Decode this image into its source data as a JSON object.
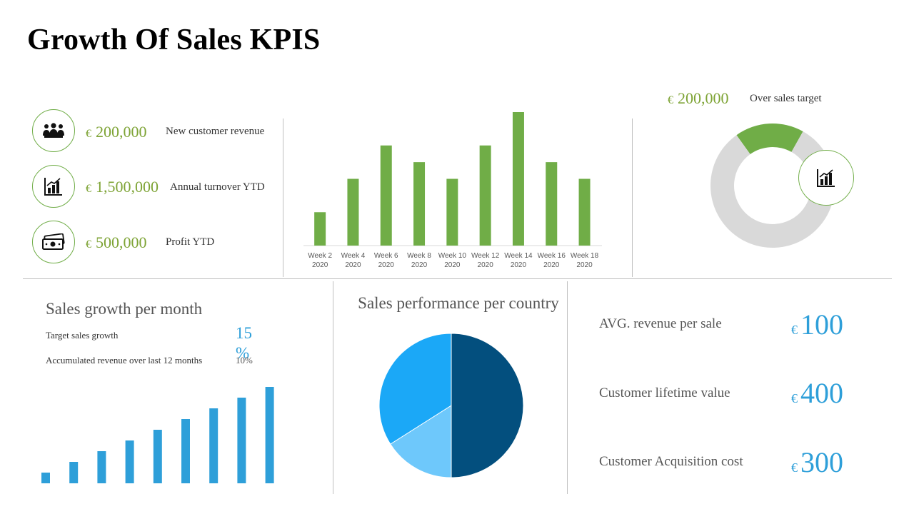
{
  "title": "Growth Of Sales KPIS",
  "kpis": [
    {
      "currency": "€",
      "value": "200,000",
      "label": "New customer revenue",
      "icon": "team-icon"
    },
    {
      "currency": "€",
      "value": "1,500,000",
      "label": "Annual turnover YTD",
      "icon": "bar-chart-icon"
    },
    {
      "currency": "€",
      "value": "500,000",
      "label": "Profit YTD",
      "icon": "money-icon"
    }
  ],
  "target": {
    "currency": "€",
    "value": "200,000",
    "label": "Over sales target"
  },
  "growth": {
    "title": "Sales growth per month",
    "items": [
      {
        "label": "Target sales growth",
        "value": "15 %"
      },
      {
        "label": "Accumulated revenue over last 12 months",
        "value": "10%"
      }
    ]
  },
  "country": {
    "title": "Sales performance per country"
  },
  "metrics": [
    {
      "label": "AVG. revenue per sale",
      "currency": "€",
      "value": "100"
    },
    {
      "label": "Customer lifetime value",
      "currency": "€",
      "value": "400"
    },
    {
      "label": "Customer Acquisition cost",
      "currency": "€",
      "value": "300"
    }
  ],
  "colors": {
    "green": "#70ad47",
    "kpi_green": "#7da334",
    "blue": "#2e9fd9",
    "navy": "#034f7e",
    "light_blue": "#6ec8fb",
    "mid_blue": "#1ba8f7",
    "gray": "#d9d9d9"
  },
  "chart_data": [
    {
      "type": "bar",
      "categories": [
        "Week 2\n2020",
        "Week 4\n2020",
        "Week 6\n2020",
        "Week 8\n2020",
        "Week 10\n2020",
        "Week 12\n2020",
        "Week 14\n2020",
        "Week 16\n2020",
        "Week 18\n2020"
      ],
      "values": [
        2,
        4,
        6,
        5,
        4,
        6,
        8,
        5,
        4
      ],
      "ylim": [
        0,
        8
      ],
      "grid": false,
      "color": "#70ad47"
    },
    {
      "type": "pie",
      "subtype": "donut",
      "values": [
        18,
        82
      ],
      "colors": [
        "#70ad47",
        "#d9d9d9"
      ],
      "start_angle_deg": -45
    },
    {
      "type": "bar",
      "categories": [
        "1",
        "2",
        "3",
        "4",
        "5",
        "6",
        "7",
        "8",
        "9"
      ],
      "values": [
        1,
        2,
        3,
        4,
        5,
        6,
        7,
        8,
        9
      ],
      "ylim": [
        0,
        9
      ],
      "axes": false,
      "color": "#2e9fd9"
    },
    {
      "type": "pie",
      "values": [
        50,
        16,
        34
      ],
      "colors": [
        "#034f7e",
        "#6ec8fb",
        "#1ba8f7"
      ]
    }
  ]
}
